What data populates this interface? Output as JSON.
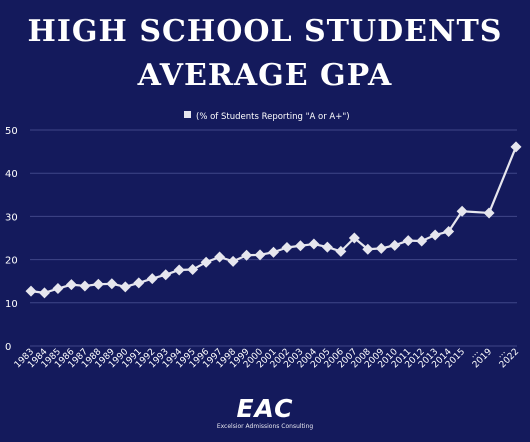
{
  "title": {
    "line1": "HIGH SCHOOL STUDENTS",
    "line2": "AVERAGE GPA"
  },
  "logo": {
    "mark": "EAC",
    "subtitle": "Excelsior Admissions Consulting"
  },
  "colors": {
    "background": "#141a5c",
    "line": "#e6e6ee",
    "grid": "#3f4688",
    "text": "#ffffff"
  },
  "chart_data": {
    "type": "line",
    "legend": "(% of Students Reporting \"A or A+\")",
    "legend_position": "top-center",
    "grid": true,
    "ylim": [
      0,
      50
    ],
    "yticks": [
      0,
      10,
      20,
      30,
      40,
      50
    ],
    "x": [
      "1983",
      "1984",
      "1985",
      "1986",
      "1987",
      "1988",
      "1989",
      "1990",
      "1991",
      "1992",
      "1993",
      "1994",
      "1995",
      "1996",
      "1997",
      "1998",
      "1999",
      "2000",
      "2001",
      "2002",
      "2003",
      "2004",
      "2005",
      "2006",
      "2007",
      "2008",
      "2009",
      "2010",
      "2011",
      "2012",
      "2013",
      "2014",
      "2015",
      "...",
      "2019",
      "...",
      "2022"
    ],
    "x_label_visible": [
      true,
      true,
      true,
      true,
      true,
      true,
      true,
      true,
      true,
      true,
      true,
      true,
      true,
      true,
      true,
      true,
      true,
      true,
      true,
      true,
      true,
      true,
      true,
      true,
      true,
      true,
      true,
      true,
      true,
      true,
      true,
      true,
      true,
      true,
      true,
      true,
      true
    ],
    "series": [
      {
        "name": "(% of Students Reporting \"A or A+\")",
        "values": [
          12.7,
          12.3,
          13.3,
          14.2,
          13.9,
          14.3,
          14.4,
          13.7,
          14.6,
          15.6,
          16.5,
          17.6,
          17.7,
          19.4,
          20.6,
          19.6,
          21.0,
          21.1,
          21.7,
          22.8,
          23.2,
          23.6,
          22.9,
          21.9,
          25.0,
          22.4,
          22.6,
          23.3,
          24.4,
          24.3,
          25.7,
          26.5,
          31.2,
          null,
          30.8,
          null,
          46.1
        ]
      }
    ]
  }
}
